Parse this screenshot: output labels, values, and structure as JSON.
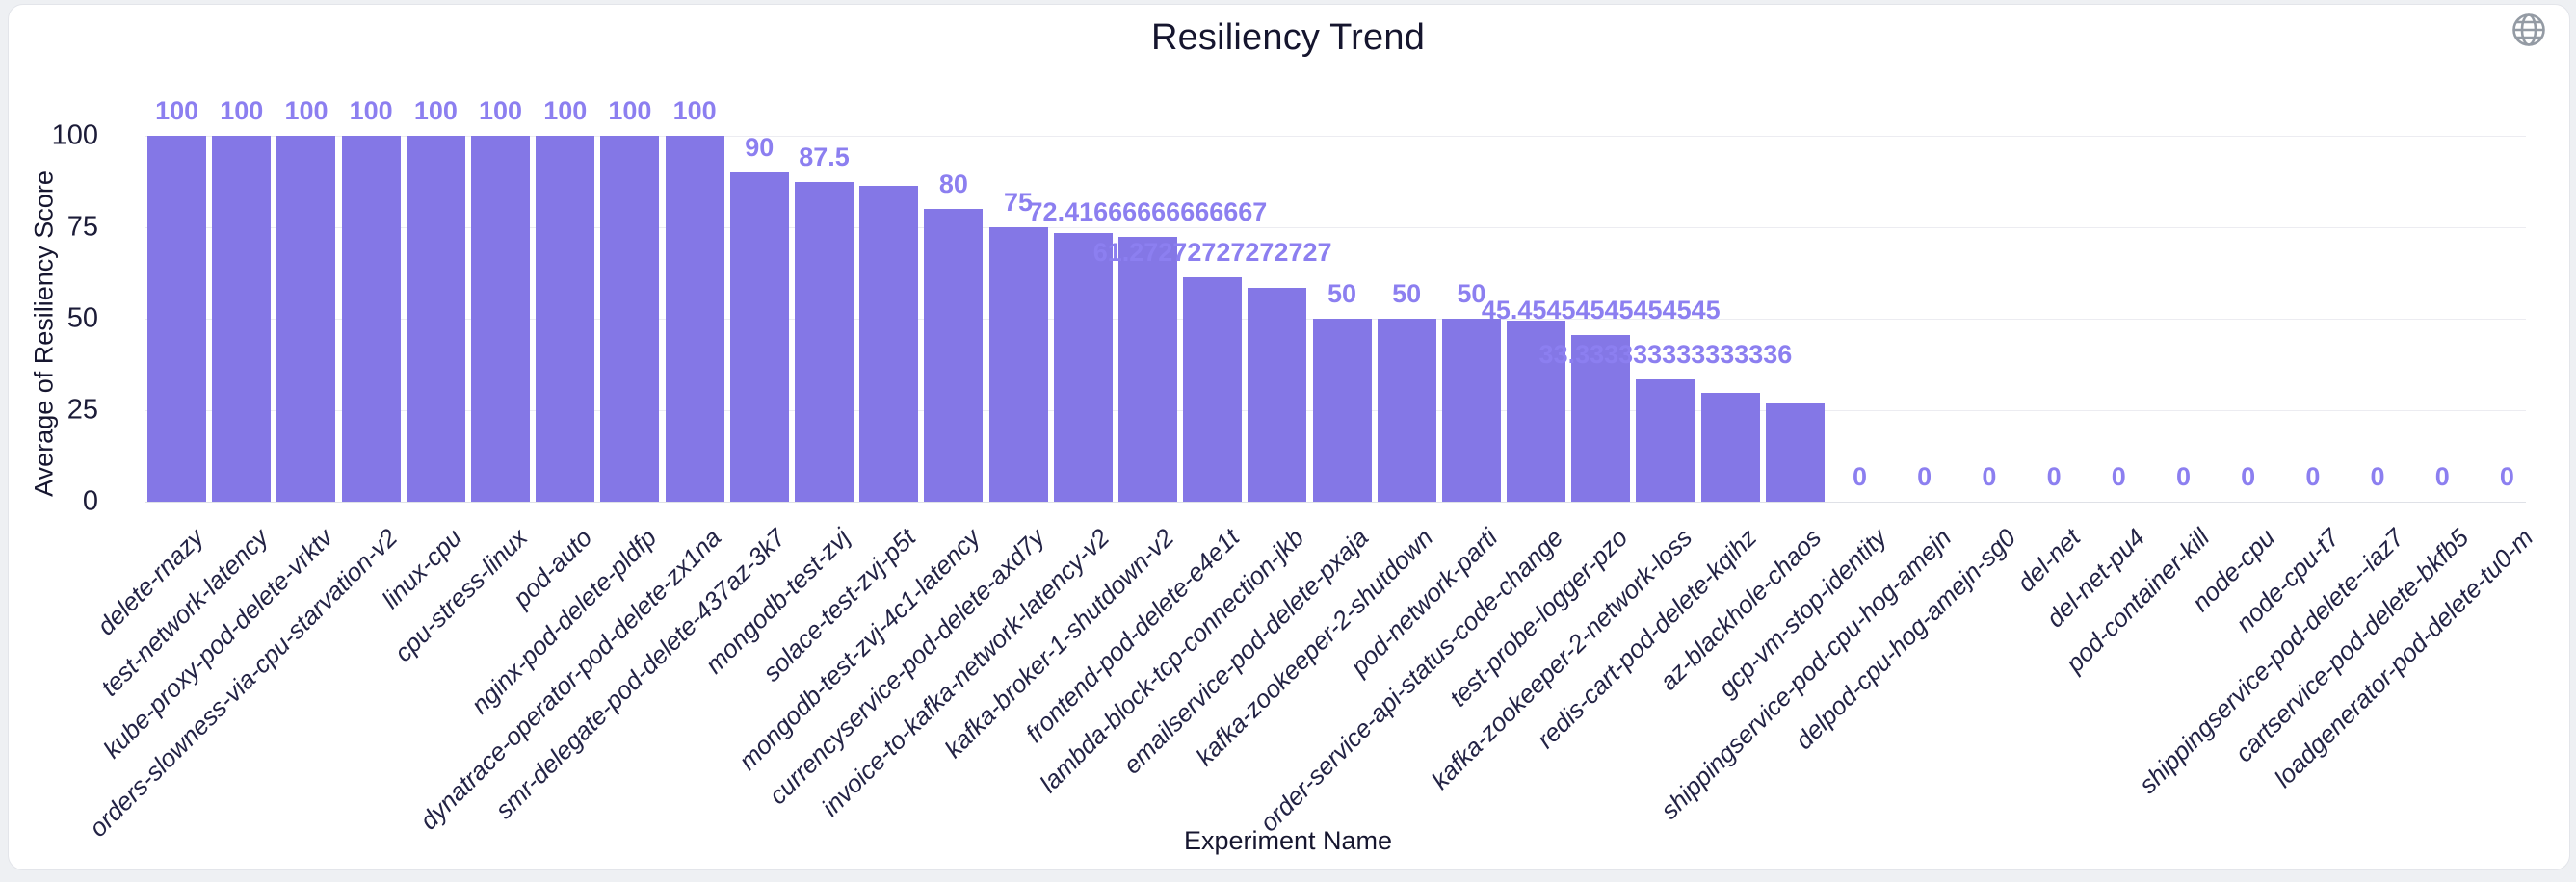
{
  "header": {
    "title": "Resiliency Trend",
    "globe_icon": "globe-icon",
    "globe_color": "#949ba4"
  },
  "chart_data": {
    "type": "bar",
    "title": "Resiliency Trend",
    "xlabel": "Experiment Name",
    "ylabel": "Average of Resiliency Score",
    "ylim": [
      0,
      100
    ],
    "y_ticks": [
      "100",
      "75",
      "50",
      "25",
      "0"
    ],
    "grid": true,
    "legend": "none",
    "bar_color": "#8477e6",
    "value_label_color": "#8c7ff0",
    "axis_text_color": "#16162f",
    "experiments": [
      {
        "name": "delete-rnazy",
        "value": 100,
        "label": "100"
      },
      {
        "name": "test-network-latency",
        "value": 100,
        "label": "100"
      },
      {
        "name": "kube-proxy-pod-delete-vrktv",
        "value": 100,
        "label": "100"
      },
      {
        "name": "orders-slowness-via-cpu-starvation-v2",
        "value": 100,
        "label": "100"
      },
      {
        "name": "linux-cpu",
        "value": 100,
        "label": "100"
      },
      {
        "name": "cpu-stress-linux",
        "value": 100,
        "label": "100"
      },
      {
        "name": "pod-auto",
        "value": 100,
        "label": "100"
      },
      {
        "name": "nginx-pod-delete-pldfp",
        "value": 100,
        "label": "100"
      },
      {
        "name": "dynatrace-operator-pod-delete-zx1na",
        "value": 100,
        "label": "100"
      },
      {
        "name": "smr-delegate-pod-delete-437az-3k7",
        "value": 90,
        "label": "90"
      },
      {
        "name": "mongodb-test-zvj",
        "value": 87.5,
        "label": "87.5"
      },
      {
        "name": "solace-test-zvj-p5t",
        "value": 86.36,
        "label": null
      },
      {
        "name": "mongodb-test-zvj-4c1-latency",
        "value": 80,
        "label": "80"
      },
      {
        "name": "currencyservice-pod-delete-axd7y",
        "value": 75,
        "label": "75"
      },
      {
        "name": "invoice-to-kafka-network-latency-v2",
        "value": 73.33,
        "label": null
      },
      {
        "name": "kafka-broker-1-shutdown-v2",
        "value": 72.41666666666667,
        "label": "72.41666666666667"
      },
      {
        "name": "frontend-pod-delete-e4e1t",
        "value": 61.27272727272727,
        "label": "61.27272727272727"
      },
      {
        "name": "lambda-block-tcp-connection-jkb",
        "value": 58.33,
        "label": null
      },
      {
        "name": "emailservice-pod-delete-pxaja",
        "value": 50,
        "label": "50"
      },
      {
        "name": "kafka-zookeeper-2-shutdown",
        "value": 50,
        "label": "50"
      },
      {
        "name": "pod-network-parti",
        "value": 50,
        "label": "50"
      },
      {
        "name": "order-service-api-status-code-change",
        "value": 49.4,
        "label": null
      },
      {
        "name": "test-probe-logger-pzo",
        "value": 45.45454545454545,
        "label": "45.45454545454545"
      },
      {
        "name": "kafka-zookeeper-2-network-loss",
        "value": 33.333333333333336,
        "label": "33.333333333333336"
      },
      {
        "name": "redis-cart-pod-delete-kqihz",
        "value": 29.7,
        "label": null
      },
      {
        "name": "az-blackhole-chaos",
        "value": 26.8,
        "label": null
      },
      {
        "name": "gcp-vm-stop-identity",
        "value": 0,
        "label": "0"
      },
      {
        "name": "shippingservice-pod-cpu-hog-amejn",
        "value": 0,
        "label": "0"
      },
      {
        "name": "delpod-cpu-hog-amejn-sg0",
        "value": 0,
        "label": "0"
      },
      {
        "name": "del-net",
        "value": 0,
        "label": "0"
      },
      {
        "name": "del-net-pu4",
        "value": 0,
        "label": "0"
      },
      {
        "name": "pod-container-kill",
        "value": 0,
        "label": "0"
      },
      {
        "name": "node-cpu",
        "value": 0,
        "label": "0"
      },
      {
        "name": "node-cpu-t7",
        "value": 0,
        "label": "0"
      },
      {
        "name": "shippingservice-pod-delete--iaz7",
        "value": 0,
        "label": "0"
      },
      {
        "name": "cartservice-pod-delete-bkfb5",
        "value": 0,
        "label": "0"
      },
      {
        "name": "loadgenerator-pod-delete-tu0-m",
        "value": 0,
        "label": "0"
      }
    ]
  }
}
